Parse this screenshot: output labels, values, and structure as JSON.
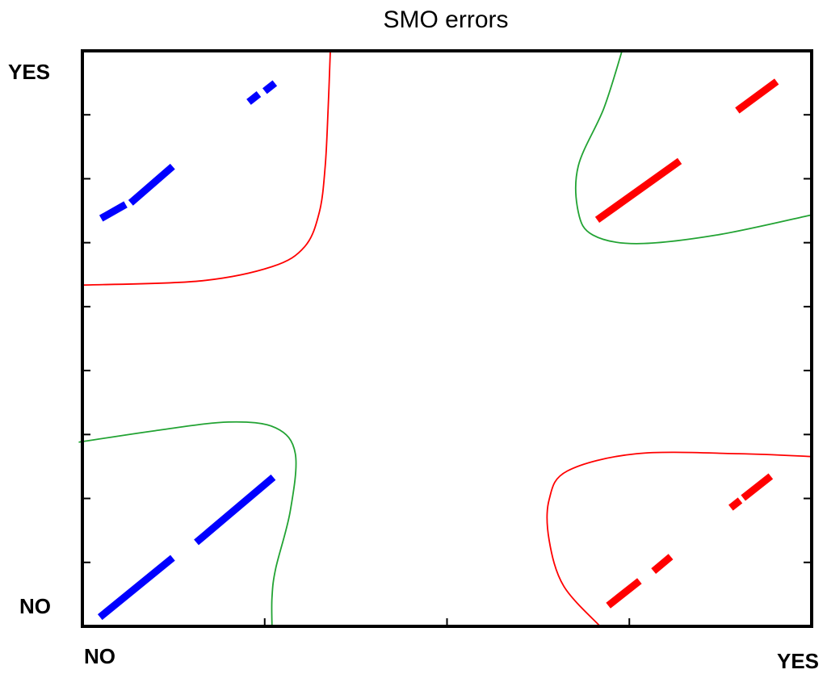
{
  "chart_data": {
    "type": "scatter",
    "title": "SMO errors",
    "xlabel": "",
    "ylabel": "",
    "xlim": [
      0,
      1
    ],
    "ylim": [
      0,
      1
    ],
    "grid": false,
    "x_tick_labels": {
      "min": "NO",
      "max": "YES"
    },
    "y_tick_labels": {
      "min": "NO",
      "max": "YES"
    },
    "colors": {
      "blue": "#0000ff",
      "red": "#ff0000",
      "green": "#22a333",
      "axis": "#000000"
    },
    "point_groups": [
      {
        "color": "blue",
        "segments": [
          [
            [
              0.028,
              0.02
            ],
            [
              0.12,
              0.115
            ]
          ],
          [
            [
              0.16,
              0.15
            ],
            [
              0.258,
              0.255
            ]
          ]
        ]
      },
      {
        "color": "blue",
        "segments": [
          [
            [
              0.03,
              0.712
            ],
            [
              0.055,
              0.73
            ]
          ],
          [
            [
              0.07,
              0.74
            ],
            [
              0.12,
              0.795
            ]
          ]
        ]
      },
      {
        "color": "blue",
        "segments": [
          [
            [
              0.232,
              0.915
            ],
            [
              0.238,
              0.921
            ]
          ],
          [
            [
              0.254,
              0.934
            ],
            [
              0.26,
              0.94
            ]
          ]
        ]
      },
      {
        "color": "red",
        "segments": [
          [
            [
              0.71,
              0.71
            ],
            [
              0.815,
              0.805
            ]
          ]
        ]
      },
      {
        "color": "red",
        "segments": [
          [
            [
              0.902,
              0.9
            ],
            [
              0.948,
              0.943
            ]
          ]
        ]
      },
      {
        "color": "red",
        "segments": [
          [
            [
              0.725,
              0.04
            ],
            [
              0.76,
              0.075
            ]
          ],
          [
            [
              0.787,
              0.1
            ],
            [
              0.803,
              0.117
            ]
          ]
        ]
      },
      {
        "color": "red",
        "segments": [
          [
            [
              0.893,
              0.21
            ],
            [
              0.898,
              0.215
            ]
          ],
          [
            [
              0.91,
              0.227
            ],
            [
              0.94,
              0.257
            ]
          ]
        ]
      }
    ],
    "decision_boundaries": [
      {
        "color": "red",
        "points": [
          [
            0.0,
            0.593
          ],
          [
            0.16,
            0.6
          ],
          [
            0.26,
            0.625
          ],
          [
            0.305,
            0.66
          ],
          [
            0.325,
            0.72
          ],
          [
            0.333,
            0.8
          ],
          [
            0.337,
            0.9
          ],
          [
            0.34,
            1.0
          ]
        ]
      },
      {
        "color": "green",
        "points": [
          [
            0.74,
            1.0
          ],
          [
            0.715,
            0.9
          ],
          [
            0.68,
            0.8
          ],
          [
            0.68,
            0.72
          ],
          [
            0.7,
            0.68
          ],
          [
            0.76,
            0.665
          ],
          [
            0.87,
            0.68
          ],
          [
            1.0,
            0.715
          ]
        ]
      },
      {
        "color": "green",
        "points": [
          [
            -0.005,
            0.32
          ],
          [
            0.1,
            0.34
          ],
          [
            0.2,
            0.355
          ],
          [
            0.265,
            0.345
          ],
          [
            0.292,
            0.3
          ],
          [
            0.285,
            0.2
          ],
          [
            0.265,
            0.1
          ],
          [
            0.26,
            0.05
          ],
          [
            0.26,
            0.0
          ]
        ]
      },
      {
        "color": "red",
        "points": [
          [
            1.0,
            0.295
          ],
          [
            0.9,
            0.3
          ],
          [
            0.76,
            0.3
          ],
          [
            0.665,
            0.27
          ],
          [
            0.64,
            0.22
          ],
          [
            0.64,
            0.15
          ],
          [
            0.66,
            0.07
          ],
          [
            0.71,
            0.0
          ]
        ]
      }
    ]
  }
}
